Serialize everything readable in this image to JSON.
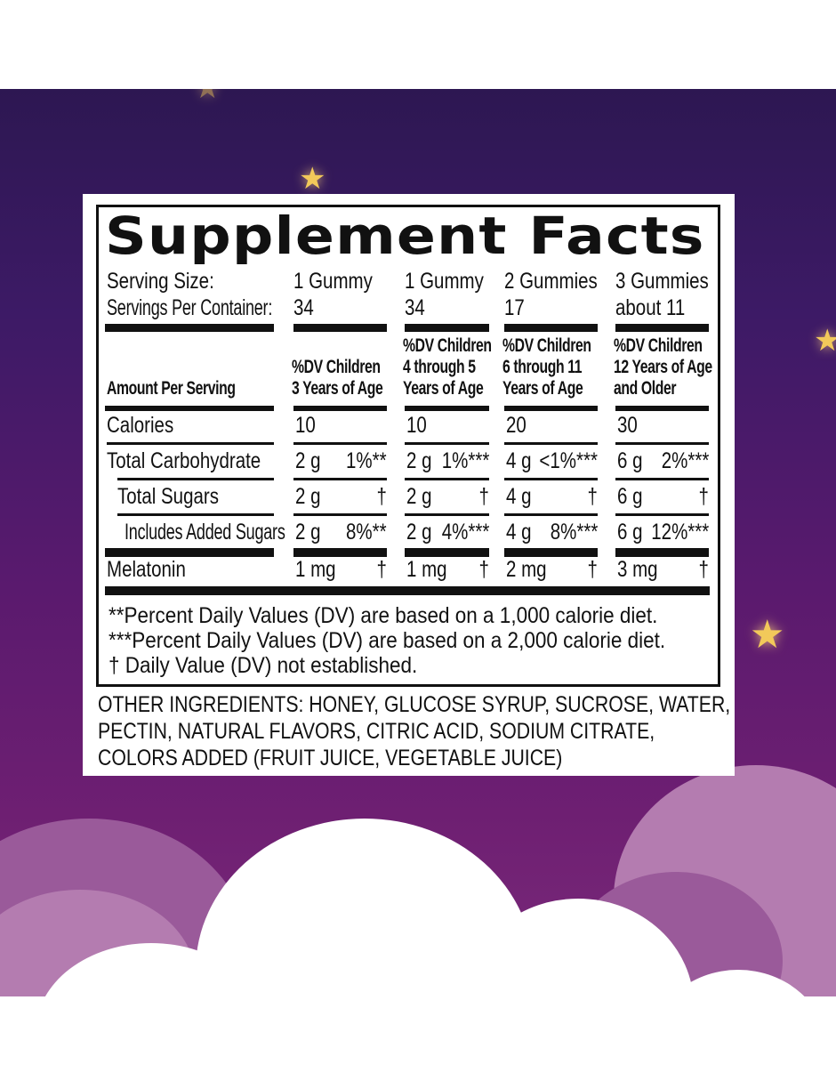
{
  "colors": {
    "background_top": "#2d1752",
    "background_bottom": "#7a2a7a",
    "star": "#f2c95a",
    "panel": "#ffffff",
    "ink": "#111111"
  },
  "decor": {
    "icons": [
      "star-icon",
      "cloud-shape"
    ]
  },
  "label": {
    "title": "Supplement Facts",
    "serving_size_label": "Serving Size:",
    "servings_per_container_label": "Servings Per Container:",
    "amount_per_serving_label": "Amount Per Serving",
    "columns": [
      {
        "serving_size": "1 Gummy",
        "servings": "34",
        "header": [
          "",
          "%DV Children",
          "3 Years of Age"
        ]
      },
      {
        "serving_size": "1 Gummy",
        "servings": "34",
        "header": [
          "%DV Children",
          "4 through 5",
          "Years of Age"
        ]
      },
      {
        "serving_size": "2 Gummies",
        "servings": "17",
        "header": [
          "%DV Children",
          "6 through 11",
          "Years of Age"
        ]
      },
      {
        "serving_size": "3 Gummies",
        "servings": "about 11",
        "header": [
          "%DV Children",
          "12 Years of Age",
          "and Older"
        ]
      }
    ],
    "rows": [
      {
        "name": "Calories",
        "values": [
          [
            "10",
            ""
          ],
          [
            "10",
            ""
          ],
          [
            "20",
            ""
          ],
          [
            "30",
            ""
          ]
        ]
      },
      {
        "name": "Total Carbohydrate",
        "values": [
          [
            "2 g",
            "1%**"
          ],
          [
            "2 g",
            "1%***"
          ],
          [
            "4 g",
            "<1%***"
          ],
          [
            "6 g",
            "2%***"
          ]
        ]
      },
      {
        "name": "Total Sugars",
        "values": [
          [
            "2 g",
            "†"
          ],
          [
            "2 g",
            "†"
          ],
          [
            "4 g",
            "†"
          ],
          [
            "6 g",
            "†"
          ]
        ]
      },
      {
        "name": "Includes Added Sugars",
        "values": [
          [
            "2 g",
            "8%**"
          ],
          [
            "2 g",
            "4%***"
          ],
          [
            "4 g",
            "8%***"
          ],
          [
            "6 g",
            "12%***"
          ]
        ]
      },
      {
        "name": "Melatonin",
        "values": [
          [
            "1 mg",
            "†"
          ],
          [
            "1 mg",
            "†"
          ],
          [
            "2 mg",
            "†"
          ],
          [
            "3 mg",
            "†"
          ]
        ]
      }
    ],
    "footnotes": [
      "**Percent Daily Values (DV) are based on a 1,000 calorie diet.",
      "***Percent Daily Values (DV) are based on a 2,000 calorie diet.",
      "† Daily Value (DV) not established."
    ]
  },
  "other_ingredients": [
    "OTHER INGREDIENTS: HONEY, GLUCOSE SYRUP, SUCROSE, WATER,",
    "PECTIN, NATURAL FLAVORS, CITRIC ACID, SODIUM CITRATE,",
    "COLORS ADDED (FRUIT JUICE, VEGETABLE JUICE)"
  ]
}
